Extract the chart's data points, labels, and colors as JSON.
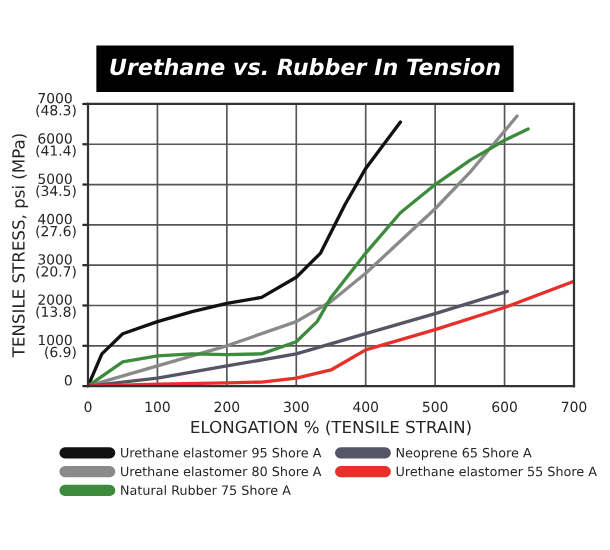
{
  "chart_data": {
    "type": "line",
    "title": "Urethane vs. Rubber In Tension",
    "xlabel": "ELONGATION % (TENSILE STRAIN)",
    "ylabel": "TENSILE STRESS, psi (MPa)",
    "xlim": [
      0,
      700
    ],
    "xticks": [
      0,
      100,
      200,
      300,
      400,
      500,
      600,
      700
    ],
    "ylim": [
      0,
      7000
    ],
    "yticks": [
      0,
      1000,
      2000,
      3000,
      4000,
      5000,
      6000,
      7000
    ],
    "y2lim": [
      0,
      48.3
    ],
    "y2ticks": [
      {
        "value": 6.9,
        "label": "(6.9)"
      },
      {
        "value": 13.8,
        "label": "(13.8)"
      },
      {
        "value": 20.7,
        "label": "(20.7)"
      },
      {
        "value": 27.6,
        "label": "(27.6)"
      },
      {
        "value": 34.5,
        "label": "(34.5)"
      },
      {
        "value": 41.4,
        "label": "(41.4)"
      },
      {
        "value": 48.3,
        "label": "(48.3)"
      }
    ],
    "grid": true,
    "legend": "bottom",
    "marker": "none",
    "line_style": "solid",
    "series": [
      {
        "name": "Urethane elastomer 95 Shore A",
        "color": "#111111",
        "x": [
          0,
          20,
          50,
          100,
          150,
          200,
          250,
          300,
          335,
          370,
          400,
          450
        ],
        "values": [
          0,
          800,
          1300,
          1600,
          1850,
          2050,
          2200,
          2700,
          3300,
          4500,
          5400,
          6550
        ]
      },
      {
        "name": "Urethane elastomer 80 Shore A",
        "color": "#8a8a8a",
        "x": [
          0,
          100,
          200,
          300,
          350,
          400,
          450,
          500,
          550,
          618
        ],
        "values": [
          0,
          500,
          1000,
          1600,
          2100,
          2800,
          3600,
          4400,
          5300,
          6700
        ]
      },
      {
        "name": "Natural Rubber 75 Shore A",
        "color": "#3d8c3d",
        "x": [
          0,
          50,
          100,
          150,
          200,
          250,
          300,
          330,
          350,
          400,
          450,
          500,
          550,
          600,
          634
        ],
        "values": [
          0,
          600,
          750,
          800,
          780,
          800,
          1100,
          1600,
          2200,
          3300,
          4300,
          5000,
          5600,
          6100,
          6380
        ]
      },
      {
        "name": "Neoprene 65 Shore A",
        "color": "#555566",
        "x": [
          0,
          100,
          200,
          300,
          400,
          500,
          604
        ],
        "values": [
          0,
          200,
          500,
          800,
          1300,
          1800,
          2350
        ]
      },
      {
        "name": "Urethane elastomer 55 Shore A",
        "color": "#e8302a",
        "x": [
          0,
          100,
          200,
          250,
          300,
          350,
          400,
          500,
          600,
          700
        ],
        "values": [
          0,
          50,
          80,
          100,
          200,
          400,
          900,
          1400,
          1950,
          2600
        ]
      }
    ]
  }
}
